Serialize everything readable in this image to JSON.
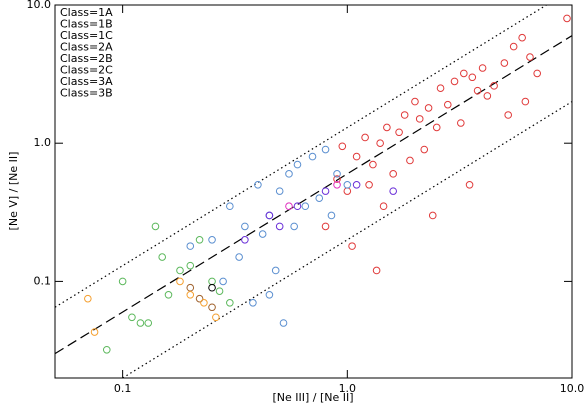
{
  "chart_data": {
    "type": "scatter",
    "xlabel": "[Ne III] / [Ne II]",
    "ylabel": "[Ne V] / [Ne II]",
    "xlog": true,
    "ylog": true,
    "xlim": [
      0.05,
      10
    ],
    "ylim": [
      0.02,
      10
    ],
    "xticks": [
      0.1,
      {
        "value": 1,
        "label": "1.0"
      },
      {
        "value": 10,
        "label": "10.0"
      }
    ],
    "yticks": [
      0.1,
      {
        "value": 1,
        "label": "1.0"
      },
      {
        "value": 10,
        "label": "10.0"
      }
    ],
    "legend": "upper left",
    "lines": [
      {
        "style": "dashed",
        "x": [
          0.05,
          10
        ],
        "y": [
          0.03,
          6
        ]
      },
      {
        "style": "dotted",
        "x": [
          0.05,
          7.7
        ],
        "y": [
          0.065,
          10
        ]
      },
      {
        "style": "dotted",
        "x": [
          0.1,
          10
        ],
        "y": [
          0.02,
          2
        ]
      }
    ],
    "series": [
      {
        "name": "Class=1A",
        "color": "#e03a3a",
        "x": [
          1.2,
          1.5,
          1.8,
          2.0,
          2.3,
          2.6,
          3.0,
          3.3,
          3.6,
          4.0,
          4.5,
          5.0,
          5.5,
          6.0,
          6.5,
          7.0,
          9.5,
          1.1,
          1.4,
          1.7,
          2.1,
          2.5,
          2.8,
          3.2,
          3.8,
          4.2,
          5.2,
          6.2,
          0.95,
          1.3,
          1.6,
          1.9,
          2.2,
          0.9,
          1.0,
          1.25,
          1.45,
          2.4,
          3.5,
          0.8,
          1.05,
          1.35
        ],
        "values": [
          1.1,
          1.3,
          1.6,
          2.0,
          1.8,
          2.5,
          2.8,
          3.2,
          3.0,
          3.5,
          2.6,
          3.8,
          5.0,
          5.8,
          4.2,
          3.2,
          8.0,
          0.8,
          1.0,
          1.2,
          1.5,
          1.3,
          1.9,
          1.4,
          2.4,
          2.2,
          1.6,
          2.0,
          0.95,
          0.7,
          0.6,
          0.75,
          0.9,
          0.55,
          0.45,
          0.5,
          0.35,
          0.3,
          0.5,
          0.25,
          0.18,
          0.12
        ]
      },
      {
        "name": "Class=1B",
        "color": "#5b8fd0",
        "x": [
          0.3,
          0.35,
          0.4,
          0.45,
          0.5,
          0.55,
          0.6,
          0.7,
          0.8,
          0.9,
          0.25,
          0.33,
          0.42,
          0.48,
          0.65,
          0.75,
          0.2,
          0.28,
          0.38,
          0.52,
          0.58,
          0.85,
          1.0,
          0.45
        ],
        "values": [
          0.35,
          0.25,
          0.5,
          0.3,
          0.45,
          0.6,
          0.7,
          0.8,
          0.9,
          0.6,
          0.2,
          0.15,
          0.22,
          0.12,
          0.35,
          0.4,
          0.18,
          0.1,
          0.07,
          0.05,
          0.25,
          0.3,
          0.5,
          0.08
        ]
      },
      {
        "name": "Class=1C",
        "color": "#5cb85c",
        "x": [
          0.085,
          0.1,
          0.12,
          0.14,
          0.15,
          0.18,
          0.22,
          0.25,
          0.3,
          0.13,
          0.16,
          0.2,
          0.11,
          0.27
        ],
        "values": [
          0.032,
          0.1,
          0.05,
          0.25,
          0.15,
          0.12,
          0.2,
          0.1,
          0.07,
          0.05,
          0.08,
          0.13,
          0.055,
          0.085
        ]
      },
      {
        "name": "Class=2A",
        "color": "#a0622d",
        "x": [
          0.2,
          0.22,
          0.25
        ],
        "values": [
          0.09,
          0.075,
          0.065
        ]
      },
      {
        "name": "Class=2B",
        "color": "#6a2fd8",
        "x": [
          0.35,
          0.45,
          0.5,
          0.6,
          0.8,
          1.1,
          1.6
        ],
        "values": [
          0.2,
          0.3,
          0.25,
          0.35,
          0.45,
          0.5,
          0.45
        ]
      },
      {
        "name": "Class=2C",
        "color": "#f5a030",
        "x": [
          0.07,
          0.075,
          0.18,
          0.2,
          0.23,
          0.26
        ],
        "values": [
          0.075,
          0.043,
          0.1,
          0.08,
          0.07,
          0.055
        ]
      },
      {
        "name": "Class=3A",
        "color": "#e030c0",
        "x": [
          0.55,
          0.9
        ],
        "values": [
          0.35,
          0.5
        ]
      },
      {
        "name": "Class=3B",
        "color": "#000000",
        "x": [
          0.25
        ],
        "values": [
          0.09
        ]
      }
    ]
  }
}
